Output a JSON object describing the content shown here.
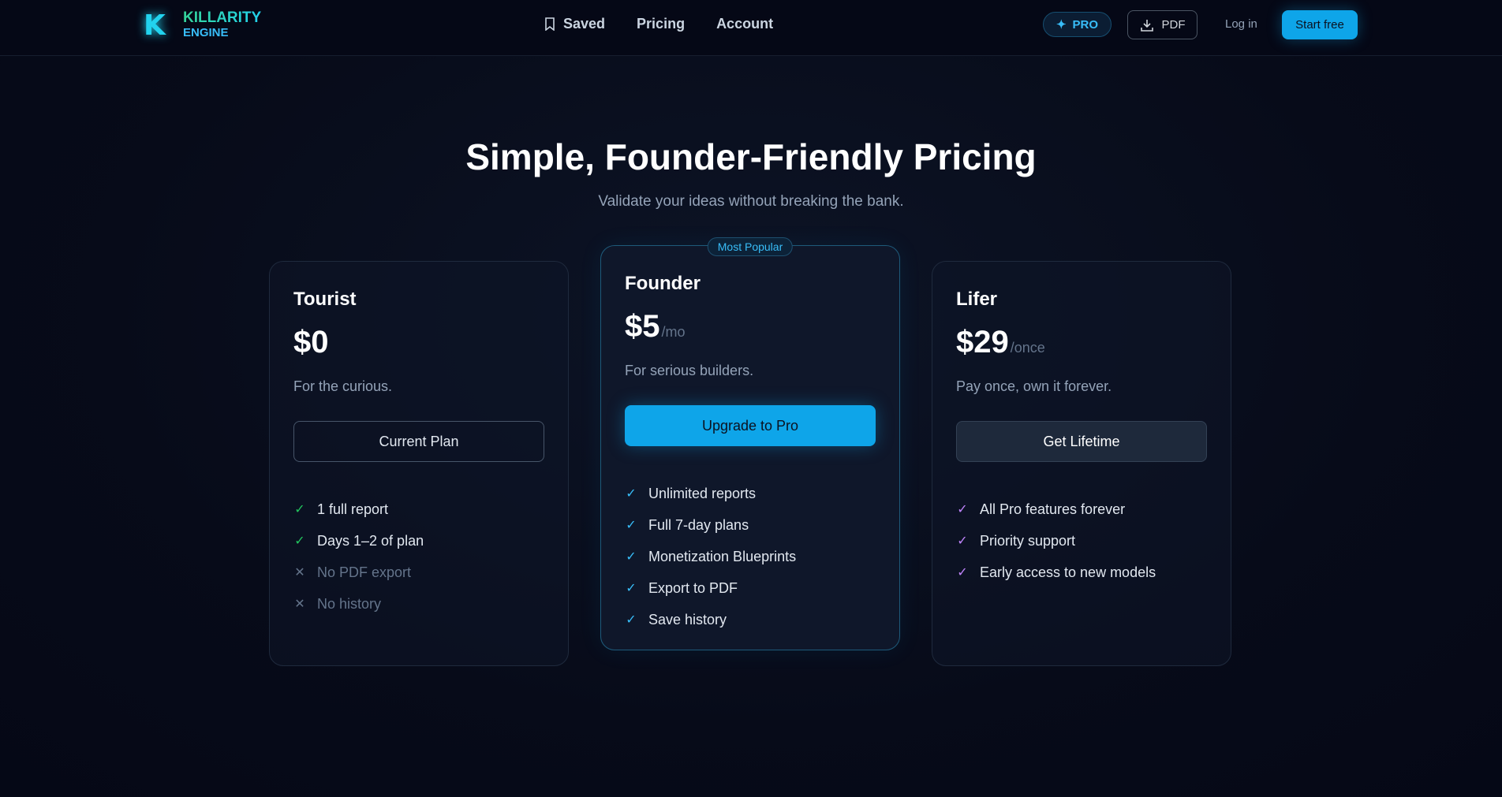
{
  "header": {
    "logo": {
      "line1": "KILLARITY",
      "line2": "ENGINE",
      "mark": "K"
    },
    "nav": [
      {
        "label": "Saved",
        "icon": "bookmark-icon"
      },
      {
        "label": "Pricing"
      },
      {
        "label": "Account"
      }
    ],
    "pro_label": "PRO",
    "pdf_label": "PDF",
    "login_label": "Log in",
    "start_label": "Start free"
  },
  "hero": {
    "title": "Simple, Founder-Friendly Pricing",
    "subtitle": "Validate your ideas without breaking the bank."
  },
  "colors": {
    "accent": "#0ea5e9",
    "check_green": "#22c55e",
    "check_blue": "#38bdf8",
    "check_purple": "#c084fc",
    "x_gray": "#64748b"
  },
  "plans": [
    {
      "name": "Tourist",
      "price": "$0",
      "period": "",
      "desc": "For the curious.",
      "button": "Current Plan",
      "features": [
        {
          "text": "1 full report",
          "included": true
        },
        {
          "text": "Days 1–2 of plan",
          "included": true
        },
        {
          "text": "No PDF export",
          "included": false
        },
        {
          "text": "No history",
          "included": false
        }
      ]
    },
    {
      "name": "Founder",
      "badge": "Most Popular",
      "price": "$5",
      "period": "/mo",
      "desc": "For serious builders.",
      "button": "Upgrade to Pro",
      "features": [
        {
          "text": "Unlimited reports",
          "included": true
        },
        {
          "text": "Full 7-day plans",
          "included": true
        },
        {
          "text": "Monetization Blueprints",
          "included": true
        },
        {
          "text": "Export to PDF",
          "included": true
        },
        {
          "text": "Save history",
          "included": true
        }
      ]
    },
    {
      "name": "Lifer",
      "price": "$29",
      "period": "/once",
      "desc": "Pay once, own it forever.",
      "button": "Get Lifetime",
      "features": [
        {
          "text": "All Pro features forever",
          "included": true
        },
        {
          "text": "Priority support",
          "included": true
        },
        {
          "text": "Early access to new models",
          "included": true
        }
      ]
    }
  ]
}
